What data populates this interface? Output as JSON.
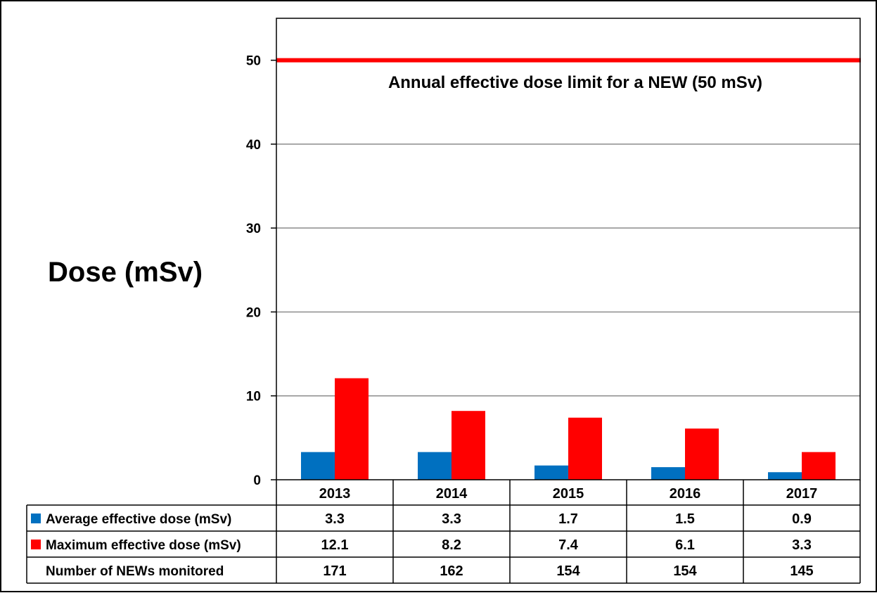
{
  "chart_data": {
    "type": "bar",
    "ylabel": "Dose (mSv)",
    "categories": [
      "2013",
      "2014",
      "2015",
      "2016",
      "2017"
    ],
    "ylim": [
      0,
      55
    ],
    "yticks": [
      0,
      10,
      20,
      30,
      40,
      50
    ],
    "grid": true,
    "series": [
      {
        "name": "Average effective dose (mSv)",
        "color": "#0070C0",
        "values": [
          3.3,
          3.3,
          1.7,
          1.5,
          0.9
        ]
      },
      {
        "name": "Maximum effective dose (mSv)",
        "color": "#FF0000",
        "values": [
          12.1,
          8.2,
          7.4,
          6.1,
          3.3
        ]
      }
    ],
    "reference_line": {
      "value": 50,
      "color": "#FF0000",
      "label": "Annual effective dose limit for a NEW (50 mSv)"
    },
    "data_table": {
      "rows": [
        {
          "label": "Average effective dose (mSv)",
          "legend_color": "#0070C0",
          "cells": [
            "3.3",
            "3.3",
            "1.7",
            "1.5",
            "0.9"
          ]
        },
        {
          "label": "Maximum effective dose (mSv)",
          "legend_color": "#FF0000",
          "cells": [
            "12.1",
            "8.2",
            "7.4",
            "6.1",
            "3.3"
          ]
        },
        {
          "label": "Number of NEWs monitored",
          "legend_color": "",
          "cells": [
            "171",
            "162",
            "154",
            "154",
            "145"
          ]
        }
      ]
    }
  }
}
